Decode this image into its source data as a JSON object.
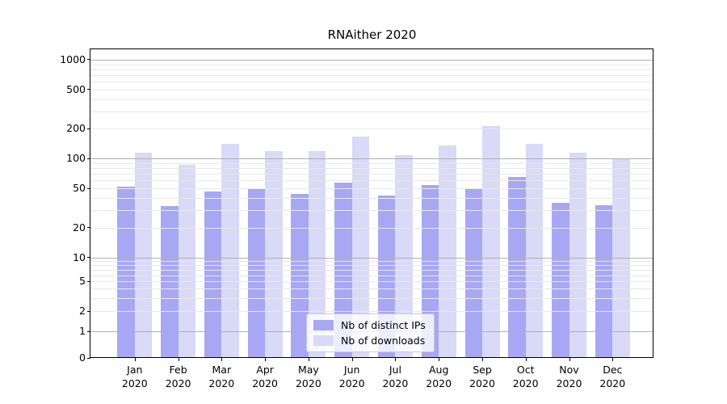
{
  "chart_data": {
    "type": "bar",
    "title": "RNAither 2020",
    "categories": [
      "Jan 2020",
      "Feb 2020",
      "Mar 2020",
      "Apr 2020",
      "May 2020",
      "Jun 2020",
      "Jul 2020",
      "Aug 2020",
      "Sep 2020",
      "Oct 2020",
      "Nov 2020",
      "Dec 2020"
    ],
    "month_labels": [
      "Jan",
      "Feb",
      "Mar",
      "Apr",
      "May",
      "Jun",
      "Jul",
      "Aug",
      "Sep",
      "Oct",
      "Nov",
      "Dec"
    ],
    "year_label": "2020",
    "series": [
      {
        "name": "Nb of distinct IPs",
        "color": "#a7a7f3",
        "values": [
          52,
          33,
          46,
          50,
          44,
          57,
          42,
          54,
          49,
          65,
          36,
          34
        ]
      },
      {
        "name": "Nb of downloads",
        "color": "#d9d9f8",
        "values": [
          115,
          87,
          141,
          119,
          119,
          166,
          108,
          137,
          213,
          141,
          115,
          100
        ]
      }
    ],
    "yscale": "log-with-zero",
    "yticks": [
      0,
      1,
      2,
      5,
      10,
      20,
      50,
      100,
      200,
      500,
      1000
    ],
    "ylim": [
      0,
      1300
    ],
    "grid": true,
    "legend_position": "lower center",
    "colors": {
      "major_grid": "#b0b0b0",
      "minor_grid": "#e8e8e8",
      "spine": "#000000",
      "text": "#000000"
    }
  }
}
